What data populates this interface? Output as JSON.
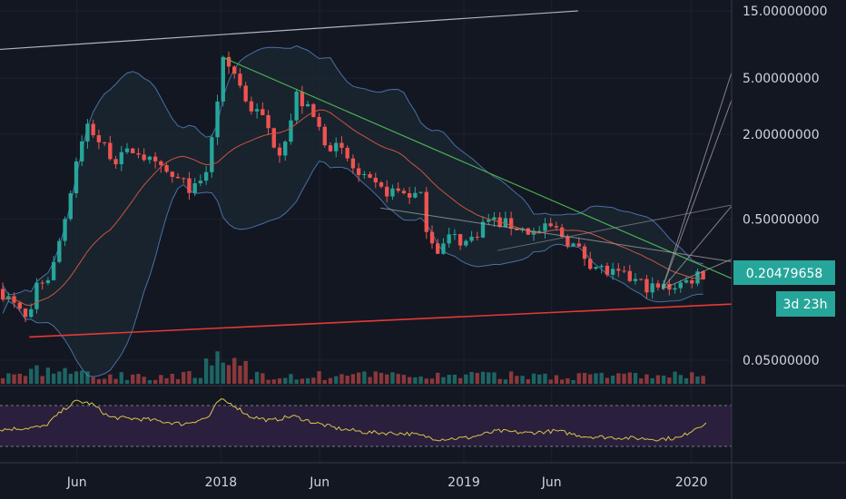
{
  "chart_data": {
    "type": "candlestick",
    "scale": "log",
    "price_axis": {
      "ticks": [
        {
          "label": "15.00000000",
          "value": 15
        },
        {
          "label": "5.00000000",
          "value": 5
        },
        {
          "label": "2.00000000",
          "value": 2
        },
        {
          "label": "0.50000000",
          "value": 0.5
        },
        {
          "label": "0.05000000",
          "value": 0.05
        }
      ]
    },
    "time_axis": {
      "ticks": [
        {
          "label": "Jun",
          "t": 0.105
        },
        {
          "label": "2018",
          "t": 0.302
        },
        {
          "label": "Jun",
          "t": 0.437
        },
        {
          "label": "2019",
          "t": 0.634
        },
        {
          "label": "Jun",
          "t": 0.754
        },
        {
          "label": "2020",
          "t": 0.945
        }
      ]
    },
    "last_price": {
      "label": "0.20479658",
      "value": 0.2048,
      "color": "#26a69a"
    },
    "countdown": {
      "label": "3d 23h",
      "color": "#26a69a"
    },
    "colors": {
      "up": "#26a69a",
      "down": "#ef5350",
      "band": "#4a6fa5",
      "ma": "#c8553d",
      "support": "#e53935",
      "rsi": "#d9c44b",
      "rsi_panel": "#2a1f3d",
      "trendline": "#4caf50",
      "fan": "#9e9e9e"
    },
    "price_anchors": [
      [
        0.0,
        0.16
      ],
      [
        0.02,
        0.12
      ],
      [
        0.04,
        0.09
      ],
      [
        0.05,
        0.17
      ],
      [
        0.07,
        0.2
      ],
      [
        0.09,
        0.55
      ],
      [
        0.105,
        1.4
      ],
      [
        0.12,
        2.4
      ],
      [
        0.135,
        1.8
      ],
      [
        0.16,
        1.3
      ],
      [
        0.185,
        1.6
      ],
      [
        0.21,
        1.2
      ],
      [
        0.24,
        0.95
      ],
      [
        0.27,
        0.8
      ],
      [
        0.285,
        1.2
      ],
      [
        0.295,
        3.0
      ],
      [
        0.305,
        6.5
      ],
      [
        0.32,
        5.5
      ],
      [
        0.34,
        3.2
      ],
      [
        0.36,
        2.6
      ],
      [
        0.38,
        1.5
      ],
      [
        0.395,
        2.2
      ],
      [
        0.405,
        3.8
      ],
      [
        0.425,
        2.8
      ],
      [
        0.445,
        1.8
      ],
      [
        0.47,
        1.45
      ],
      [
        0.49,
        1.0
      ],
      [
        0.52,
        0.8
      ],
      [
        0.55,
        0.78
      ],
      [
        0.575,
        0.72
      ],
      [
        0.585,
        0.4
      ],
      [
        0.6,
        0.3
      ],
      [
        0.615,
        0.38
      ],
      [
        0.64,
        0.34
      ],
      [
        0.665,
        0.5
      ],
      [
        0.7,
        0.45
      ],
      [
        0.73,
        0.4
      ],
      [
        0.755,
        0.44
      ],
      [
        0.78,
        0.34
      ],
      [
        0.81,
        0.24
      ],
      [
        0.83,
        0.21
      ],
      [
        0.86,
        0.19
      ],
      [
        0.895,
        0.16
      ],
      [
        0.92,
        0.17
      ],
      [
        0.94,
        0.18
      ],
      [
        0.955,
        0.21
      ],
      [
        0.965,
        0.2
      ]
    ],
    "rsi_anchors": [
      [
        0.0,
        42
      ],
      [
        0.06,
        46
      ],
      [
        0.09,
        74
      ],
      [
        0.105,
        84
      ],
      [
        0.125,
        80
      ],
      [
        0.15,
        60
      ],
      [
        0.2,
        57
      ],
      [
        0.25,
        50
      ],
      [
        0.285,
        60
      ],
      [
        0.3,
        86
      ],
      [
        0.32,
        78
      ],
      [
        0.34,
        62
      ],
      [
        0.37,
        55
      ],
      [
        0.4,
        62
      ],
      [
        0.43,
        52
      ],
      [
        0.46,
        44
      ],
      [
        0.5,
        38
      ],
      [
        0.56,
        36
      ],
      [
        0.6,
        28
      ],
      [
        0.64,
        30
      ],
      [
        0.68,
        40
      ],
      [
        0.72,
        37
      ],
      [
        0.76,
        40
      ],
      [
        0.8,
        32
      ],
      [
        0.85,
        30
      ],
      [
        0.9,
        28
      ],
      [
        0.93,
        30
      ],
      [
        0.95,
        44
      ],
      [
        0.965,
        52
      ]
    ],
    "support_line": {
      "from": [
        0.04,
        0.073
      ],
      "to": [
        1.0,
        0.125
      ]
    },
    "resistance_line": {
      "from": [
        0.305,
        7.0
      ],
      "to": [
        1.0,
        0.19
      ]
    },
    "long_trendline": {
      "from": [
        0.0,
        8.0
      ],
      "to": [
        0.79,
        15.0
      ]
    }
  }
}
